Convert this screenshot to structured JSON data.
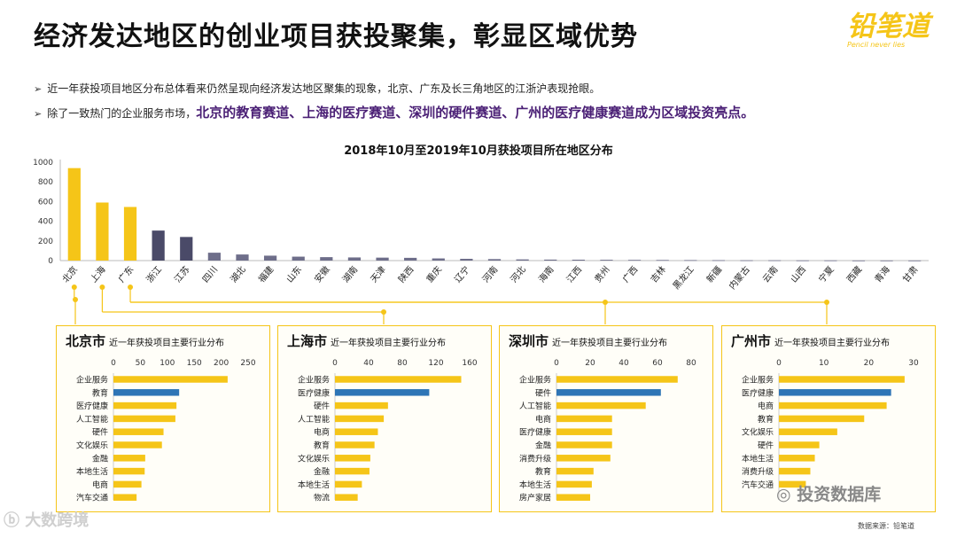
{
  "header": {
    "title": "经济发达地区的创业项目获投聚集，彰显区域优势",
    "logo_text": "铅笔道",
    "logo_tagline": "Pencil never lies"
  },
  "bullets": {
    "b1_text": "近一年获投项目地区分布总体看来仍然呈现向经济发达地区聚集的现象，北京、广东及长三角地区的江浙沪表现抢眼。",
    "b2_prefix": "除了一致热门的企业服务市场，",
    "b2_highlight": "北京的教育赛道、上海的医疗赛道、深圳的硬件赛道、广州的医疗健康赛道成为区域投资亮点。"
  },
  "chart_data": [
    {
      "type": "bar",
      "title": "2018年10月至2019年10月获投项目所在地区分布",
      "categories": [
        "北京",
        "上海",
        "广东",
        "浙江",
        "江苏",
        "四川",
        "湖北",
        "福建",
        "山东",
        "安徽",
        "湖南",
        "天津",
        "陕西",
        "重庆",
        "辽宁",
        "河南",
        "河北",
        "海南",
        "江西",
        "贵州",
        "广西",
        "吉林",
        "黑龙江",
        "新疆",
        "内蒙古",
        "云南",
        "山西",
        "宁夏",
        "西藏",
        "青海",
        "甘肃"
      ],
      "values": [
        940,
        590,
        545,
        305,
        240,
        80,
        62,
        50,
        40,
        35,
        32,
        30,
        28,
        22,
        18,
        15,
        12,
        10,
        9,
        8,
        7,
        6,
        5,
        4,
        3,
        3,
        2,
        2,
        1,
        1,
        1
      ],
      "ylim": [
        0,
        1000
      ],
      "yticks": [
        0,
        200,
        400,
        600,
        800,
        1000
      ],
      "colors": {
        "highlight": "#f5c518",
        "mid": "#4a4a68",
        "rest": "#6e6e8a"
      }
    },
    {
      "type": "bar",
      "title": "北京市",
      "subtitle": "近一年获投项目主要行业分布",
      "categories": [
        "企业服务",
        "教育",
        "医疗健康",
        "人工智能",
        "硬件",
        "文化娱乐",
        "金融",
        "本地生活",
        "电商",
        "汽车交通"
      ],
      "values": [
        212,
        122,
        117,
        115,
        93,
        90,
        59,
        58,
        52,
        43
      ],
      "highlight_index": 1,
      "xlim": [
        0,
        250
      ],
      "xticks": [
        0,
        50,
        100,
        150,
        200,
        250
      ]
    },
    {
      "type": "bar",
      "title": "上海市",
      "subtitle": "近一年获投项目主要行业分布",
      "categories": [
        "企业服务",
        "医疗健康",
        "硬件",
        "人工智能",
        "电商",
        "教育",
        "文化娱乐",
        "金融",
        "本地生活",
        "物流"
      ],
      "values": [
        150,
        112,
        63,
        58,
        51,
        47,
        42,
        41,
        32,
        27
      ],
      "highlight_index": 1,
      "xlim": [
        0,
        160
      ],
      "xticks": [
        0,
        40,
        80,
        120,
        160
      ]
    },
    {
      "type": "bar",
      "title": "深圳市",
      "subtitle": "近一年获投项目主要行业分布",
      "categories": [
        "企业服务",
        "硬件",
        "人工智能",
        "电商",
        "医疗健康",
        "金融",
        "消费升级",
        "教育",
        "本地生活",
        "房产家居"
      ],
      "values": [
        72,
        62,
        53,
        33,
        33,
        33,
        32,
        22,
        21,
        20
      ],
      "highlight_index": 1,
      "xlim": [
        0,
        80
      ],
      "xticks": [
        0,
        20,
        40,
        60,
        80
      ]
    },
    {
      "type": "bar",
      "title": "广州市",
      "subtitle": "近一年获投项目主要行业分布",
      "categories": [
        "企业服务",
        "医疗健康",
        "电商",
        "教育",
        "文化娱乐",
        "硬件",
        "本地生活",
        "消费升级",
        "汽车交通"
      ],
      "values": [
        28,
        25,
        24,
        19,
        13,
        9,
        8,
        7,
        6
      ],
      "highlight_index": 1,
      "xlim": [
        0,
        30
      ],
      "xticks": [
        0,
        10,
        20,
        30
      ]
    }
  ],
  "colors": {
    "yellow": "#f5c518",
    "blue": "#2e75b6"
  },
  "footer": {
    "source": "数据来源：铅笔道",
    "watermark_left": "大数跨境",
    "watermark_right": "投资数据库"
  }
}
